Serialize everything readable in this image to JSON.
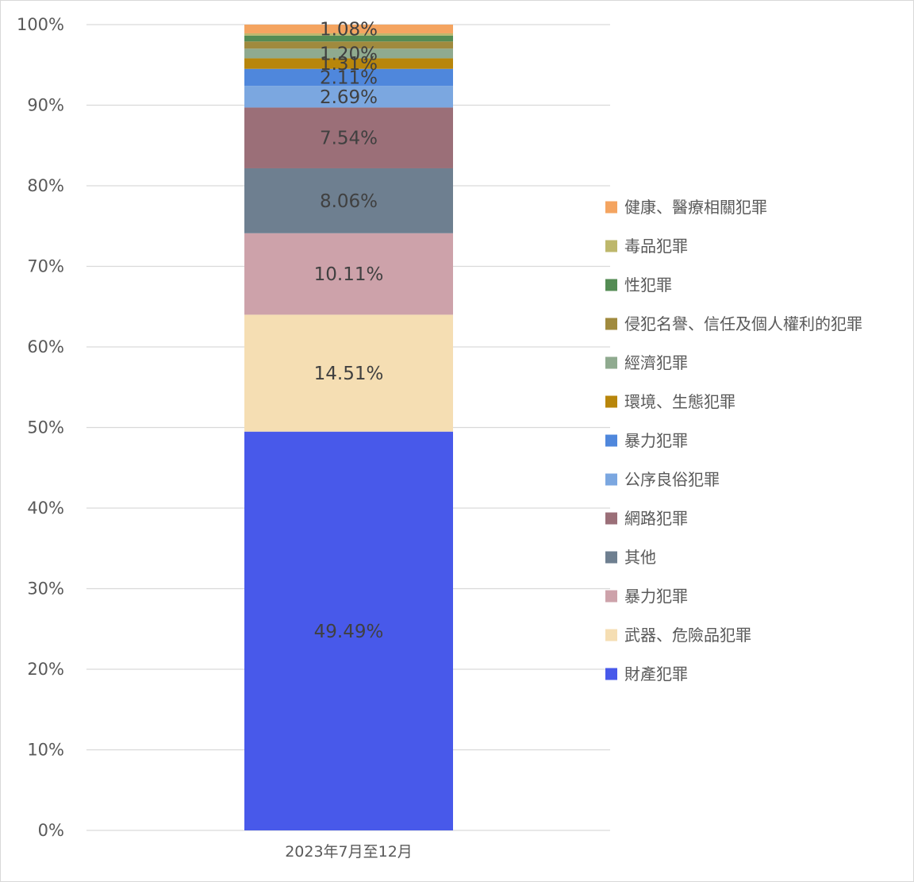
{
  "chart_data": {
    "type": "bar",
    "stacked": true,
    "categories": [
      "2023年7月至12月"
    ],
    "ylim": [
      0,
      100
    ],
    "y_ticks": [
      "0%",
      "10%",
      "20%",
      "30%",
      "40%",
      "50%",
      "60%",
      "70%",
      "80%",
      "90%",
      "100%"
    ],
    "grid": true,
    "legend_position": "right",
    "series": [
      {
        "name": "財產犯罪",
        "values": [
          49.49
        ],
        "label": "49.49%",
        "color": "#4859ea"
      },
      {
        "name": "武器、危險品犯罪",
        "values": [
          14.51
        ],
        "label": "14.51%",
        "color": "#f5deb3"
      },
      {
        "name": "暴力犯罪",
        "values": [
          10.11
        ],
        "label": "10.11%",
        "color": "#cda2aa"
      },
      {
        "name": "其他",
        "values": [
          8.06
        ],
        "label": "8.06%",
        "color": "#6e7f90"
      },
      {
        "name": "網路犯罪",
        "values": [
          7.54
        ],
        "label": "7.54%",
        "color": "#9b6f78"
      },
      {
        "name": "公序良俗犯罪",
        "values": [
          2.69
        ],
        "label": "2.69%",
        "color": "#7ba7e0"
      },
      {
        "name": "暴力犯罪",
        "values": [
          2.11
        ],
        "label": "2.11%",
        "color": "#4f87dc"
      },
      {
        "name": "環境、生態犯罪",
        "values": [
          1.31
        ],
        "label": "1.31%",
        "color": "#b8860b"
      },
      {
        "name": "經濟犯罪",
        "values": [
          1.2
        ],
        "label": "1.20%",
        "color": "#8faa8f"
      },
      {
        "name": "侵犯名譽、信任及個人權利的犯罪",
        "values": [
          0.89
        ],
        "label": "",
        "color": "#a08a3e"
      },
      {
        "name": "性犯罪",
        "values": [
          0.73
        ],
        "label": "",
        "color": "#548c54"
      },
      {
        "name": "毒品犯罪",
        "values": [
          0.28
        ],
        "label": "",
        "color": "#bdb76b"
      },
      {
        "name": "健康、醫療相關犯罪",
        "values": [
          1.08
        ],
        "label": "1.08%",
        "color": "#f4a460"
      }
    ]
  }
}
